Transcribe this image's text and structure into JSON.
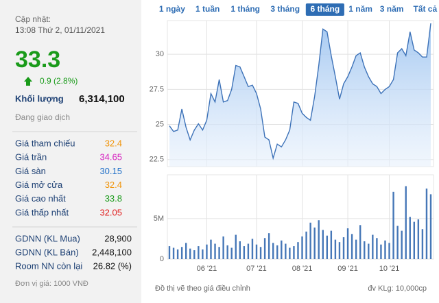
{
  "info": {
    "update_label": "Cập nhật:",
    "timestamp": "13:08 Thứ 2, 01/11/2021",
    "price": "33.3",
    "price_color": "#1a9b1a",
    "change": "0.9 (2.8%)",
    "volume_label": "Khối lượng",
    "volume": "6,314,100",
    "status": "Đang giao dịch",
    "stats": [
      {
        "label": "Giá tham chiếu",
        "value": "32.4",
        "color": "#f0940a"
      },
      {
        "label": "Giá trần",
        "value": "34.65",
        "color": "#d61fbf"
      },
      {
        "label": "Giá sàn",
        "value": "30.15",
        "color": "#1f6fc8"
      },
      {
        "label": "Giá mở cửa",
        "value": "32.4",
        "color": "#f0940a"
      },
      {
        "label": "Giá cao nhất",
        "value": "33.8",
        "color": "#1a9b1a"
      },
      {
        "label": "Giá thấp nhất",
        "value": "32.05",
        "color": "#e02020"
      }
    ],
    "foreign": [
      {
        "label": "GDNN (KL Mua)",
        "value": "28,900"
      },
      {
        "label": "GDNN (KL Bán)",
        "value": "2,448,100"
      },
      {
        "label": "Room NN còn lại",
        "value": "26.82 (%)"
      }
    ],
    "unit_note": "Đơn vị giá: 1000 VNĐ"
  },
  "tabs": {
    "items": [
      "1 ngày",
      "1 tuần",
      "1 tháng",
      "3 tháng",
      "6 tháng",
      "1 năm",
      "3 năm",
      "Tất cả"
    ],
    "active": 4
  },
  "chart_data": [
    {
      "type": "area",
      "color": "#3d72b8",
      "categories": [
        null,
        null,
        null,
        null,
        null,
        null,
        null,
        null,
        null,
        "06 '21",
        null,
        null,
        null,
        null,
        null,
        null,
        null,
        null,
        null,
        null,
        null,
        "07 '21",
        null,
        null,
        null,
        null,
        null,
        null,
        null,
        null,
        null,
        null,
        "08 '21",
        null,
        null,
        null,
        null,
        null,
        null,
        null,
        null,
        null,
        null,
        "09 '21",
        null,
        null,
        null,
        null,
        null,
        null,
        null,
        null,
        null,
        "10 '21",
        null,
        null,
        null,
        null,
        null,
        null,
        null,
        null,
        null,
        null
      ],
      "values": [
        24.9,
        24.5,
        24.6,
        26.1,
        24.8,
        23.9,
        24.6,
        25.05,
        24.6,
        25.3,
        27.2,
        26.6,
        28.2,
        26.6,
        26.7,
        27.5,
        29.2,
        29.1,
        28.4,
        27.7,
        27.8,
        27.2,
        26.1,
        24.1,
        23.9,
        22.6,
        23.6,
        23.4,
        23.9,
        24.6,
        26.6,
        26.5,
        25.8,
        25.5,
        25.3,
        27.0,
        29.2,
        31.8,
        31.6,
        29.9,
        28.4,
        26.8,
        27.9,
        28.4,
        29.1,
        29.9,
        30.1,
        29.1,
        28.4,
        27.9,
        27.7,
        27.2,
        27.5,
        27.7,
        28.2,
        30.1,
        30.4,
        29.9,
        31.6,
        30.3,
        30.1,
        29.8,
        29.8,
        32.2
      ],
      "ylim": [
        22,
        32.4
      ],
      "yticks": [
        22.5,
        25,
        27.5,
        30
      ],
      "grid": true,
      "note": "Đồ thị vẽ theo giá điều chỉnh"
    },
    {
      "type": "bar",
      "color": "#4677b7",
      "categories": [
        null,
        null,
        null,
        null,
        null,
        null,
        null,
        null,
        null,
        "06 '21",
        null,
        null,
        null,
        null,
        null,
        null,
        null,
        null,
        null,
        null,
        null,
        "07 '21",
        null,
        null,
        null,
        null,
        null,
        null,
        null,
        null,
        null,
        null,
        "08 '21",
        null,
        null,
        null,
        null,
        null,
        null,
        null,
        null,
        null,
        null,
        "09 '21",
        null,
        null,
        null,
        null,
        null,
        null,
        null,
        null,
        null,
        "10 '21",
        null,
        null,
        null,
        null,
        null,
        null,
        null,
        null,
        null,
        null
      ],
      "values": [
        1600000,
        1400000,
        1200000,
        1500000,
        2000000,
        1300000,
        1100000,
        1600000,
        1200000,
        1800000,
        2400000,
        1900000,
        1500000,
        2800000,
        1700000,
        1400000,
        3000000,
        2200000,
        1600000,
        1900000,
        2500000,
        1800000,
        1500000,
        2600000,
        3200000,
        2000000,
        1700000,
        2300000,
        1900000,
        1400000,
        1600000,
        2100000,
        2800000,
        3400000,
        4500000,
        3900000,
        4800000,
        3600000,
        2900000,
        3500000,
        2400000,
        2100000,
        2700000,
        3800000,
        3100000,
        2400000,
        4200000,
        2200000,
        1900000,
        3000000,
        2600000,
        1800000,
        2300000,
        2000000,
        8300000,
        4100000,
        3500000,
        9000000,
        5200000,
        4600000,
        4900000,
        3700000,
        8700000,
        8000000
      ],
      "ylim": [
        0,
        10400000
      ],
      "yticks": [
        0,
        {
          "value": 5000000,
          "label": "5M"
        }
      ],
      "grid": true,
      "note": "đv KLg: 10,000cp"
    }
  ]
}
